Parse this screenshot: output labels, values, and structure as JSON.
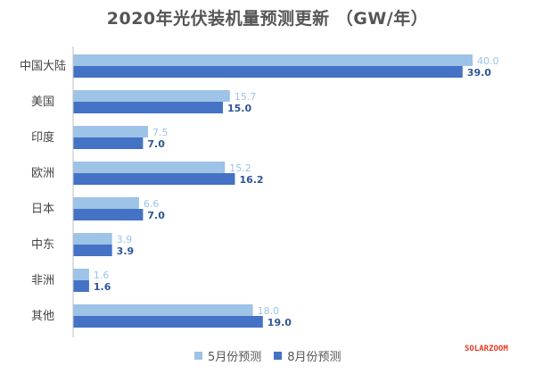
{
  "chart_data": {
    "type": "bar",
    "orientation": "horizontal",
    "title": "2020年光伏装机量预测更新 （GW/年）",
    "categories": [
      "中国大陆",
      "美国",
      "印度",
      "欧洲",
      "日本",
      "中东",
      "非洲",
      "其他"
    ],
    "series": [
      {
        "name": "5月份预测",
        "color": "#9dc3e6",
        "values": [
          "40.0",
          "15.7",
          "7.5",
          "15.2",
          "6.6",
          "3.9",
          "1.6",
          "18.0"
        ]
      },
      {
        "name": "8月份预测",
        "color": "#4472c4",
        "values": [
          "39.0",
          "15.0",
          "7.0",
          "16.2",
          "7.0",
          "3.9",
          "1.6",
          "19.0"
        ]
      }
    ],
    "xlim": [
      0,
      40
    ],
    "label_colors": {
      "series_0": "#9dc3e6",
      "series_1": "#2f5597"
    },
    "grid": false,
    "legend_position": "bottom"
  },
  "watermark": "SOLARZOOM"
}
